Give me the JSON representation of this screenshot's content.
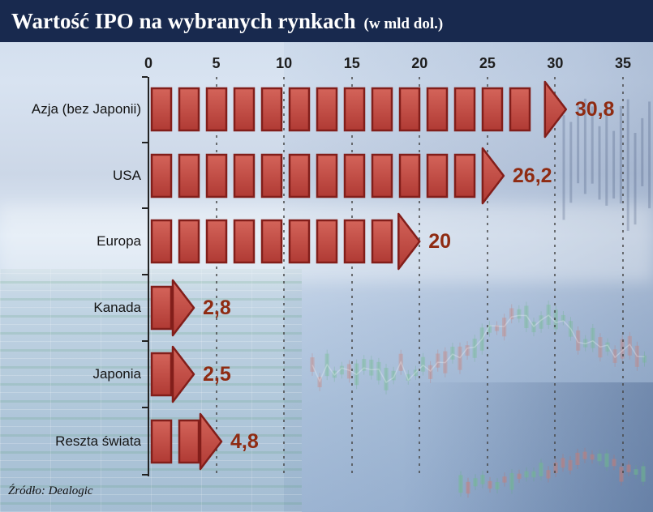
{
  "header": {
    "title": "Wartość IPO na wybranych rynkach",
    "subtitle": "(w mld dol.)"
  },
  "footer": {
    "source": "Źródło: Dealogic"
  },
  "colors": {
    "header_bg": "#18294e",
    "bar_fill_light": "#d4645a",
    "bar_fill_dark": "#b03a34",
    "bar_border": "#821e1a",
    "value_label": "#8f2b12",
    "axis": "#222222"
  },
  "chart_data": {
    "type": "bar",
    "orientation": "horizontal",
    "title": "Wartość IPO na wybranych rynkach",
    "units": "mld dol.",
    "categories": [
      "Azja (bez Japonii)",
      "USA",
      "Europa",
      "Kanada",
      "Japonia",
      "Reszta świata"
    ],
    "values": [
      30.8,
      26.2,
      20,
      2.8,
      2.5,
      4.8
    ],
    "value_labels": [
      "30,8",
      "26,2",
      "20",
      "2,8",
      "2,5",
      "4,8"
    ],
    "xlim": [
      0,
      35
    ],
    "xticks": [
      0,
      5,
      10,
      15,
      20,
      25,
      30,
      35
    ],
    "grid": "vertical-dotted",
    "legend": "none",
    "source": "Źródło: Dealogic"
  }
}
